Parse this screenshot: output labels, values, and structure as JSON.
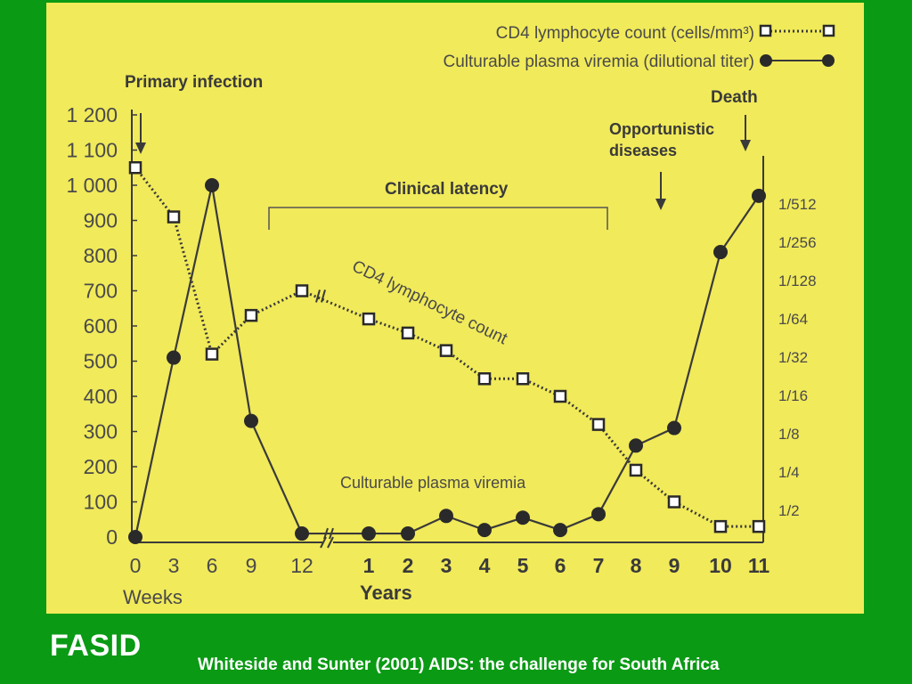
{
  "footer": {
    "brand": "FASID",
    "citation": "Whiteside and Sunter (2001) AIDS: the challenge for South Africa"
  },
  "colors": {
    "background": "#0a9a14",
    "panel": "#f1ea5a",
    "ink": "#3a3a3a",
    "footer_text": "#ffffff"
  },
  "chart_data": {
    "type": "line",
    "title": "",
    "legend": {
      "placement": "top-right",
      "entries": [
        "CD4 lymphocyte count (cells/mm³)",
        "Culturable plasma viremia (dilutional titer)"
      ]
    },
    "x_ticks": [
      "0",
      "3",
      "6",
      "9",
      "12",
      "1",
      "2",
      "3",
      "4",
      "5",
      "6",
      "7",
      "8",
      "9",
      "10",
      "11"
    ],
    "x_unit_labels": {
      "weeks": "Weeks",
      "years": "Years"
    },
    "y_left_ticks": [
      "0",
      "100",
      "200",
      "300",
      "400",
      "500",
      "600",
      "700",
      "800",
      "900",
      "1 000",
      "1 100",
      "1 200"
    ],
    "y_left_range": [
      0,
      1200
    ],
    "y_right_ticks": [
      "1/2",
      "1/4",
      "1/8",
      "1/16",
      "1/32",
      "1/64",
      "1/128",
      "1/256",
      "1/512"
    ],
    "annotations": {
      "primary_infection": "Primary infection",
      "clinical_latency": "Clinical latency",
      "opportunistic_diseases": "Opportunistic diseases",
      "death": "Death",
      "cd4_curve_label": "CD4 lymphocyte count",
      "viremia_curve_label": "Culturable plasma viremia"
    },
    "grid": false,
    "series": [
      {
        "name": "CD4 lymphocyte count (cells/mm³)",
        "style": "dotted-square",
        "points": [
          {
            "x": "0 weeks",
            "y": 1050
          },
          {
            "x": "3 weeks",
            "y": 910
          },
          {
            "x": "6 weeks",
            "y": 520
          },
          {
            "x": "9 weeks",
            "y": 630
          },
          {
            "x": "12 weeks",
            "y": 700
          },
          {
            "x": "1 year",
            "y": 620
          },
          {
            "x": "2 years",
            "y": 580
          },
          {
            "x": "3 years",
            "y": 530
          },
          {
            "x": "4 years",
            "y": 450
          },
          {
            "x": "5 years",
            "y": 450
          },
          {
            "x": "6 years",
            "y": 400
          },
          {
            "x": "7 years",
            "y": 320
          },
          {
            "x": "8 years",
            "y": 190
          },
          {
            "x": "9 years",
            "y": 100
          },
          {
            "x": "10 years",
            "y": 30
          },
          {
            "x": "11 years",
            "y": 30
          }
        ]
      },
      {
        "name": "Culturable plasma viremia (dilutional titer)",
        "style": "solid-circle",
        "points": [
          {
            "x": "0 weeks",
            "y": 0
          },
          {
            "x": "3 weeks",
            "y": 510
          },
          {
            "x": "6 weeks",
            "y": 1000
          },
          {
            "x": "9 weeks",
            "y": 330
          },
          {
            "x": "12 weeks",
            "y": 10
          },
          {
            "x": "1 year",
            "y": 10
          },
          {
            "x": "2 years",
            "y": 10
          },
          {
            "x": "3 years",
            "y": 60
          },
          {
            "x": "4 years",
            "y": 20
          },
          {
            "x": "5 years",
            "y": 55
          },
          {
            "x": "6 years",
            "y": 20
          },
          {
            "x": "7 years",
            "y": 65
          },
          {
            "x": "8 years",
            "y": 260
          },
          {
            "x": "9 years",
            "y": 310
          },
          {
            "x": "10 years",
            "y": 810
          },
          {
            "x": "11 years",
            "y": 970
          }
        ]
      }
    ]
  }
}
